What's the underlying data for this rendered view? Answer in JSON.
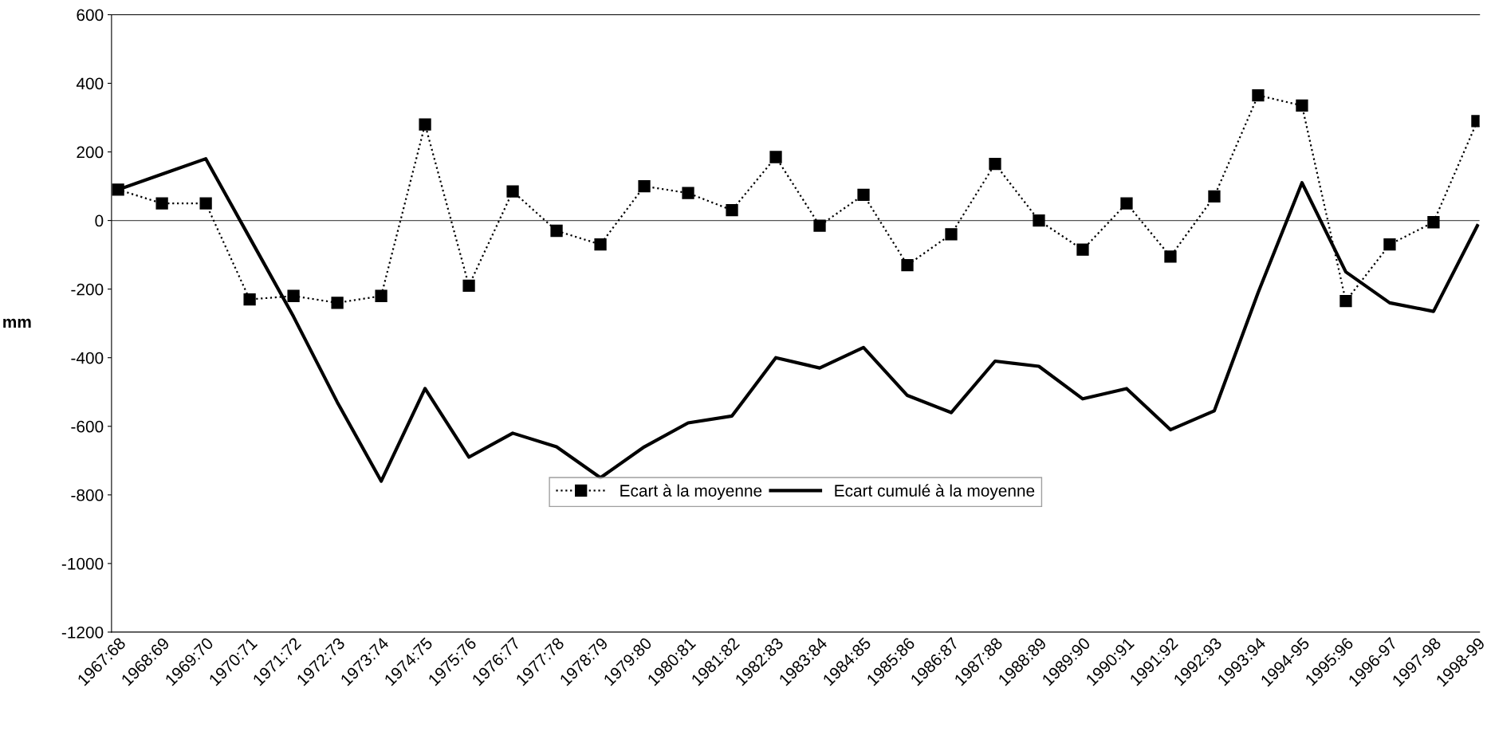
{
  "chart_data": {
    "type": "line",
    "ylabel": "mm",
    "categories": [
      "1967:68",
      "1968:69",
      "1969:70",
      "1970:71",
      "1971:72",
      "1972:73",
      "1973:74",
      "1974:75",
      "1975:76",
      "1976:77",
      "1977:78",
      "1978:79",
      "1979:80",
      "1980:81",
      "1981:82",
      "1982:83",
      "1983:84",
      "1984:85",
      "1985:86",
      "1986:87",
      "1987:88",
      "1988:89",
      "1989:90",
      "1990:91",
      "1991:92",
      "1992:93",
      "1993:94",
      "1994-95",
      "1995:96",
      "1996-97",
      "1997-98",
      "1998-99"
    ],
    "series": [
      {
        "name": "Ecart à la moyenne",
        "color": "#000000",
        "marker": "square",
        "line_style": "dotted",
        "values": [
          90,
          50,
          50,
          -230,
          -220,
          -240,
          -220,
          280,
          -190,
          85,
          -30,
          -70,
          100,
          80,
          30,
          185,
          -15,
          75,
          -130,
          -40,
          165,
          0,
          -85,
          50,
          -105,
          70,
          365,
          335,
          -235,
          -70,
          -5,
          290
        ]
      },
      {
        "name": "Ecart cumulé à la moyenne",
        "color": "#000000",
        "marker": "none",
        "line_style": "solid",
        "values": [
          90,
          135,
          180,
          -50,
          -280,
          -530,
          -760,
          -490,
          -690,
          -620,
          -660,
          -750,
          -660,
          -590,
          -570,
          -400,
          -430,
          -370,
          -510,
          -560,
          -410,
          -425,
          -520,
          -490,
          -610,
          -555,
          -210,
          110,
          -150,
          -240,
          -265,
          -15
        ]
      }
    ],
    "ylim": [
      -1200,
      600
    ],
    "yticks": [
      -1200,
      -1000,
      -800,
      -600,
      -400,
      -200,
      0,
      200,
      400,
      600
    ],
    "ref_lines": [
      {
        "axis": "y",
        "value": 0,
        "color": "#555555"
      }
    ],
    "grid": false,
    "legend": "bottom"
  }
}
